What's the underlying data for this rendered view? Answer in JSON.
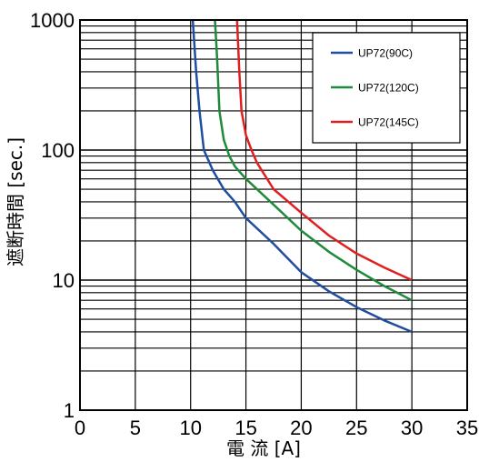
{
  "chart_data": {
    "type": "line",
    "xlabel": "電 流 [A]",
    "ylabel": "遮断時間 [sec.]",
    "xlim": [
      0,
      35
    ],
    "ylim": [
      1,
      1000
    ],
    "y_scale": "log",
    "x_ticks": [
      "0",
      "5",
      "10",
      "15",
      "20",
      "25",
      "30",
      "35"
    ],
    "y_ticks": [
      "1",
      "10",
      "100",
      "1000"
    ],
    "grid": true,
    "legend_position": "top-right",
    "series": [
      {
        "name": "UP72(90C)",
        "color": "#1f4ea1",
        "x": [
          10.2,
          10.5,
          10.8,
          11.2,
          12,
          13,
          14,
          15,
          17.5,
          20,
          22.5,
          25,
          27.5,
          30
        ],
        "y": [
          1000,
          400,
          200,
          100,
          70,
          50,
          40,
          30,
          19,
          11.5,
          8.2,
          6.2,
          4.9,
          4
        ]
      },
      {
        "name": "UP72(120C)",
        "color": "#1f8a3a",
        "x": [
          12.2,
          12.4,
          12.6,
          13,
          13.5,
          14,
          15,
          17.5,
          20,
          22.5,
          25,
          27.5,
          30
        ],
        "y": [
          1000,
          500,
          200,
          120,
          90,
          75,
          60,
          38,
          24,
          16.5,
          12,
          9,
          7
        ]
      },
      {
        "name": "UP72(145C)",
        "color": "#e02020",
        "x": [
          14.2,
          14.4,
          14.6,
          15,
          15.5,
          16,
          17.5,
          20,
          22.5,
          25,
          27.5,
          30
        ],
        "y": [
          1000,
          400,
          200,
          130,
          100,
          80,
          50,
          33,
          22,
          16,
          12.5,
          10
        ]
      }
    ]
  }
}
